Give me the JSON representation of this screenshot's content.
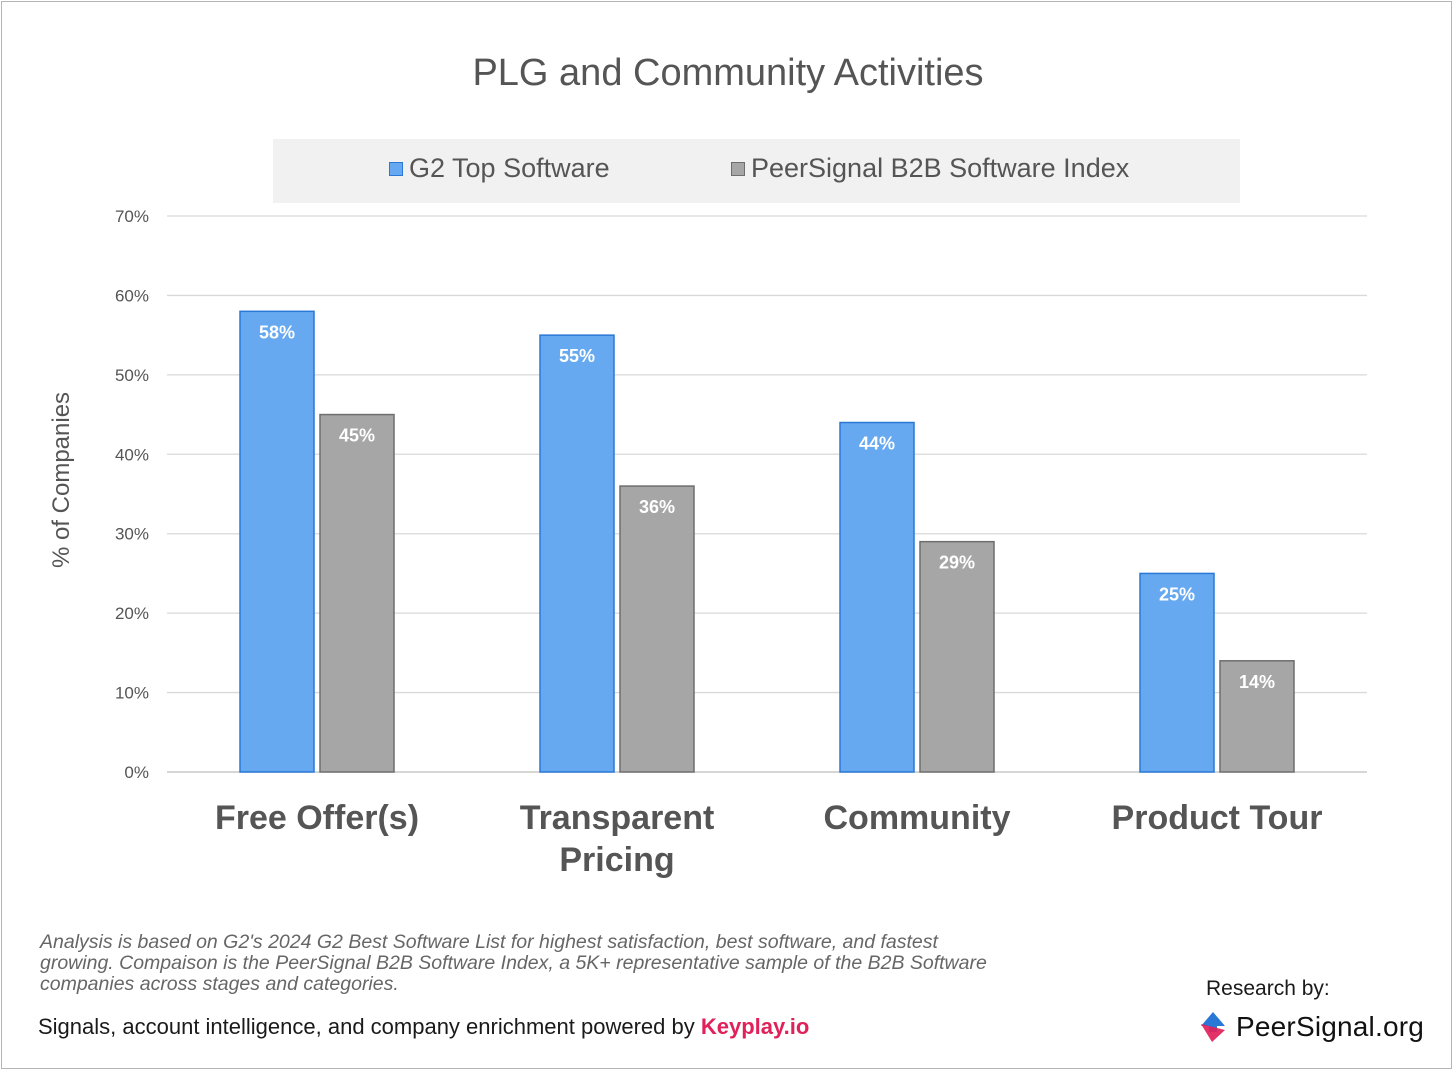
{
  "chart_data": {
    "type": "bar",
    "title": "PLG and Community Activities",
    "ylabel": "% of Companies",
    "xlabel": "",
    "ylim": [
      0,
      70
    ],
    "yticks": [
      "0%",
      "10%",
      "20%",
      "30%",
      "40%",
      "50%",
      "60%",
      "70%"
    ],
    "categories": [
      [
        "Free Offer(s)"
      ],
      [
        "Transparent",
        "Pricing"
      ],
      [
        "Community"
      ],
      [
        "Product Tour"
      ]
    ],
    "series": [
      {
        "name": "G2 Top Software",
        "values": [
          58,
          55,
          44,
          25
        ],
        "labels": [
          "58%",
          "55%",
          "44%",
          "25%"
        ],
        "color": "#66a9f0",
        "stroke": "#2a78d6"
      },
      {
        "name": "PeerSignal B2B Software Index",
        "values": [
          45,
          36,
          29,
          14
        ],
        "labels": [
          "45%",
          "36%",
          "29%",
          "14%"
        ],
        "color": "#a6a6a6",
        "stroke": "#6e6e6e"
      }
    ],
    "grid": true,
    "legend_position": "top"
  },
  "footnote": "Analysis is based on G2's 2024 G2 Best Software List for highest satisfaction, best software, and fastest growing. Compaison is the PeerSignal B2B Software Index, a 5K+ representative sample of the B2B Software companies across stages and categories.",
  "footer": {
    "text": "Signals, account intelligence, and company enrichment powered by ",
    "link": "Keyplay.io",
    "link_color": "#e0215a",
    "research_by": "Research by:",
    "brand_name": "PeerSignal.org",
    "brand_icon": "peersignal-logo-icon"
  }
}
